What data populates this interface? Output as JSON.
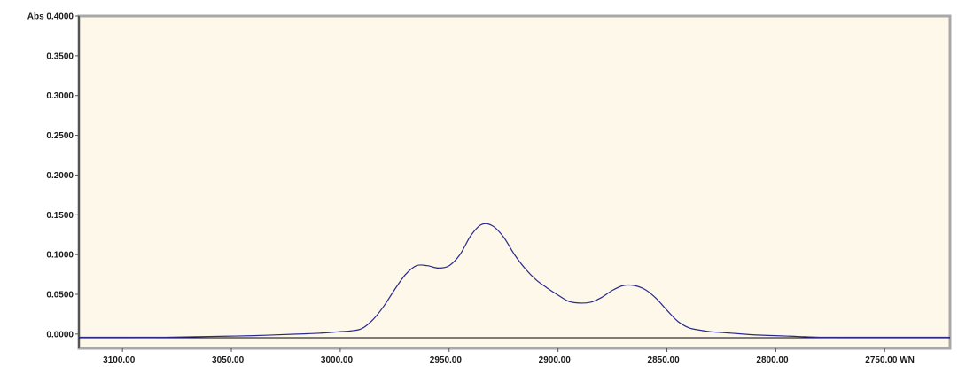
{
  "chart_data": {
    "type": "line",
    "title": "",
    "xlabel": "WN",
    "ylabel": "Abs",
    "x_reversed": true,
    "xlim": [
      3120,
      2720
    ],
    "ylim": [
      -0.018,
      0.4
    ],
    "grid": false,
    "legend": "none",
    "colors": {
      "plot_background": "#fdf8e9",
      "frame": "#a8a8a8",
      "line": "#2a2a8c",
      "baseline": "#000000"
    },
    "y_ticks": [
      {
        "value": 0.4,
        "label": "Abs 0.4000"
      },
      {
        "value": 0.35,
        "label": "0.3500"
      },
      {
        "value": 0.3,
        "label": "0.3000"
      },
      {
        "value": 0.25,
        "label": "0.2500"
      },
      {
        "value": 0.2,
        "label": "0.2000"
      },
      {
        "value": 0.15,
        "label": "0.1500"
      },
      {
        "value": 0.1,
        "label": "0.1000"
      },
      {
        "value": 0.05,
        "label": "0.0500"
      },
      {
        "value": 0.0,
        "label": "0.0000"
      }
    ],
    "x_ticks": [
      {
        "value": 3100,
        "label": "3100.00"
      },
      {
        "value": 3050,
        "label": "3050.00"
      },
      {
        "value": 3000,
        "label": "3000.00"
      },
      {
        "value": 2950,
        "label": "2950.00"
      },
      {
        "value": 2900,
        "label": "2900.00"
      },
      {
        "value": 2850,
        "label": "2850.00"
      },
      {
        "value": 2800,
        "label": "2800.00"
      },
      {
        "value": 2750,
        "label": "2750.00 WN"
      }
    ],
    "series": [
      {
        "x": [
          3120,
          3100,
          3080,
          3060,
          3040,
          3020,
          3010,
          3000,
          2995,
          2990,
          2985,
          2980,
          2975,
          2970,
          2965,
          2960,
          2955,
          2950,
          2945,
          2940,
          2935,
          2930,
          2925,
          2920,
          2915,
          2910,
          2905,
          2900,
          2895,
          2890,
          2885,
          2880,
          2875,
          2870,
          2865,
          2860,
          2855,
          2850,
          2845,
          2840,
          2835,
          2830,
          2825,
          2820,
          2815,
          2810,
          2800,
          2790,
          2780,
          2770,
          2760,
          2750,
          2740,
          2730,
          2720
        ],
        "y": [
          -0.004,
          -0.004,
          -0.004,
          -0.003,
          -0.002,
          0.0,
          0.001,
          0.003,
          0.004,
          0.007,
          0.018,
          0.035,
          0.056,
          0.075,
          0.086,
          0.086,
          0.083,
          0.086,
          0.1,
          0.124,
          0.138,
          0.136,
          0.122,
          0.1,
          0.082,
          0.068,
          0.058,
          0.049,
          0.041,
          0.039,
          0.04,
          0.046,
          0.055,
          0.061,
          0.061,
          0.056,
          0.045,
          0.03,
          0.016,
          0.008,
          0.005,
          0.003,
          0.002,
          0.001,
          0.0,
          -0.001,
          -0.002,
          -0.003,
          -0.004,
          -0.004,
          -0.004,
          -0.004,
          -0.004,
          -0.004,
          -0.004
        ]
      }
    ]
  }
}
